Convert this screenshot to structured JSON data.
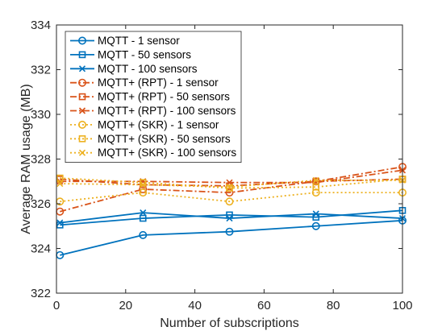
{
  "chart_data": {
    "type": "line",
    "title": "",
    "xlabel": "Number of subscriptions",
    "ylabel": "Average RAM usage (MB)",
    "xlim": [
      0,
      100
    ],
    "ylim": [
      322,
      334
    ],
    "xticks": [
      0,
      20,
      40,
      60,
      80,
      100
    ],
    "yticks": [
      322,
      324,
      326,
      328,
      330,
      332,
      334
    ],
    "x": [
      1,
      25,
      50,
      75,
      100
    ],
    "grid": false,
    "legend_position": "top-left",
    "series": [
      {
        "name": "MQTT - 1 sensor",
        "values": [
          323.7,
          324.6,
          324.75,
          325.0,
          325.25
        ],
        "color": "#0072BD",
        "dash": "solid",
        "marker": "circle"
      },
      {
        "name": "MQTT - 50 sensors",
        "values": [
          325.05,
          325.35,
          325.5,
          325.4,
          325.7
        ],
        "color": "#0072BD",
        "dash": "solid",
        "marker": "square"
      },
      {
        "name": "MQTT - 100 sensors",
        "values": [
          325.15,
          325.6,
          325.35,
          325.55,
          325.35
        ],
        "color": "#0072BD",
        "dash": "solid",
        "marker": "x"
      },
      {
        "name": "MQTT+ (RPT) - 1 sensor",
        "values": [
          325.65,
          326.65,
          326.5,
          327.0,
          327.65
        ],
        "color": "#D95319",
        "dash": "dashdot",
        "marker": "circle"
      },
      {
        "name": "MQTT+ (RPT) - 50 sensors",
        "values": [
          327.1,
          326.85,
          326.8,
          327.0,
          327.1
        ],
        "color": "#D95319",
        "dash": "dashdot",
        "marker": "square"
      },
      {
        "name": "MQTT+ (RPT) - 100 sensors",
        "values": [
          327.0,
          327.0,
          326.95,
          326.95,
          327.5
        ],
        "color": "#D95319",
        "dash": "dashdot",
        "marker": "x"
      },
      {
        "name": "MQTT+ (SKR) - 1 sensor",
        "values": [
          326.1,
          326.5,
          326.1,
          326.5,
          326.5
        ],
        "color": "#EDB120",
        "dash": "dotted",
        "marker": "circle"
      },
      {
        "name": "MQTT+ (SKR) - 50 sensors",
        "values": [
          327.15,
          326.95,
          326.7,
          326.75,
          327.1
        ],
        "color": "#EDB120",
        "dash": "dotted",
        "marker": "square"
      },
      {
        "name": "MQTT+ (SKR) - 100 sensors",
        "values": [
          326.9,
          326.85,
          326.75,
          327.05,
          327.05
        ],
        "color": "#EDB120",
        "dash": "dotted",
        "marker": "x"
      }
    ]
  }
}
